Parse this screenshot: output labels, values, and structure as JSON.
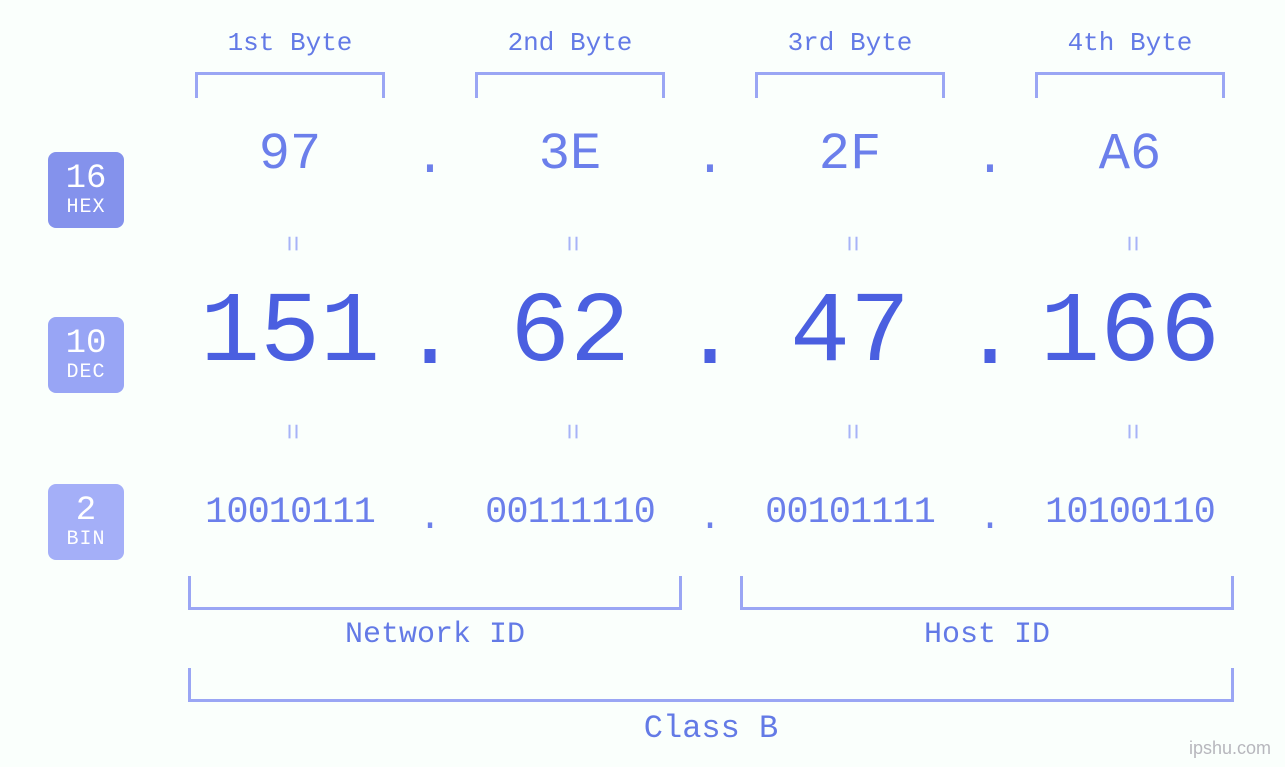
{
  "type": "infographic",
  "background_color": "#fafffc",
  "font_family": "Courier New, monospace",
  "colors": {
    "primary": "#4a5fe0",
    "secondary": "#6b7feb",
    "label": "#637ae6",
    "bracket": "#9aa6f4",
    "equals": "#a7b3f7",
    "badge_hex_bg": "#8492ec",
    "badge_dec_bg": "#98a5f5",
    "badge_bin_bg": "#a4aff8",
    "badge_fg": "#ffffff",
    "watermark": "#b7b7bd"
  },
  "font_sizes_pt": {
    "byte_label": 20,
    "hex_value": 39,
    "dec_value": 75,
    "bin_value": 28,
    "badge_num": 26,
    "badge_lbl": 15,
    "net_host_label": 22,
    "class_label": 24,
    "watermark": 14
  },
  "badges": {
    "hex": {
      "base_num": "16",
      "base_lbl": "HEX"
    },
    "dec": {
      "base_num": "10",
      "base_lbl": "DEC"
    },
    "bin": {
      "base_num": "2",
      "base_lbl": "BIN"
    }
  },
  "byte_headers": [
    "1st Byte",
    "2nd Byte",
    "3rd Byte",
    "4th Byte"
  ],
  "ip": {
    "hex": [
      "97",
      "3E",
      "2F",
      "A6"
    ],
    "dec": [
      "151",
      "62",
      "47",
      "166"
    ],
    "bin": [
      "10010111",
      "00111110",
      "00101111",
      "10100110"
    ]
  },
  "dot": ".",
  "equals_glyph": "=",
  "network_id_label": "Network ID",
  "host_id_label": "Host ID",
  "class_label": "Class B",
  "class_split_after_byte": 2,
  "watermark": "ipshu.com"
}
